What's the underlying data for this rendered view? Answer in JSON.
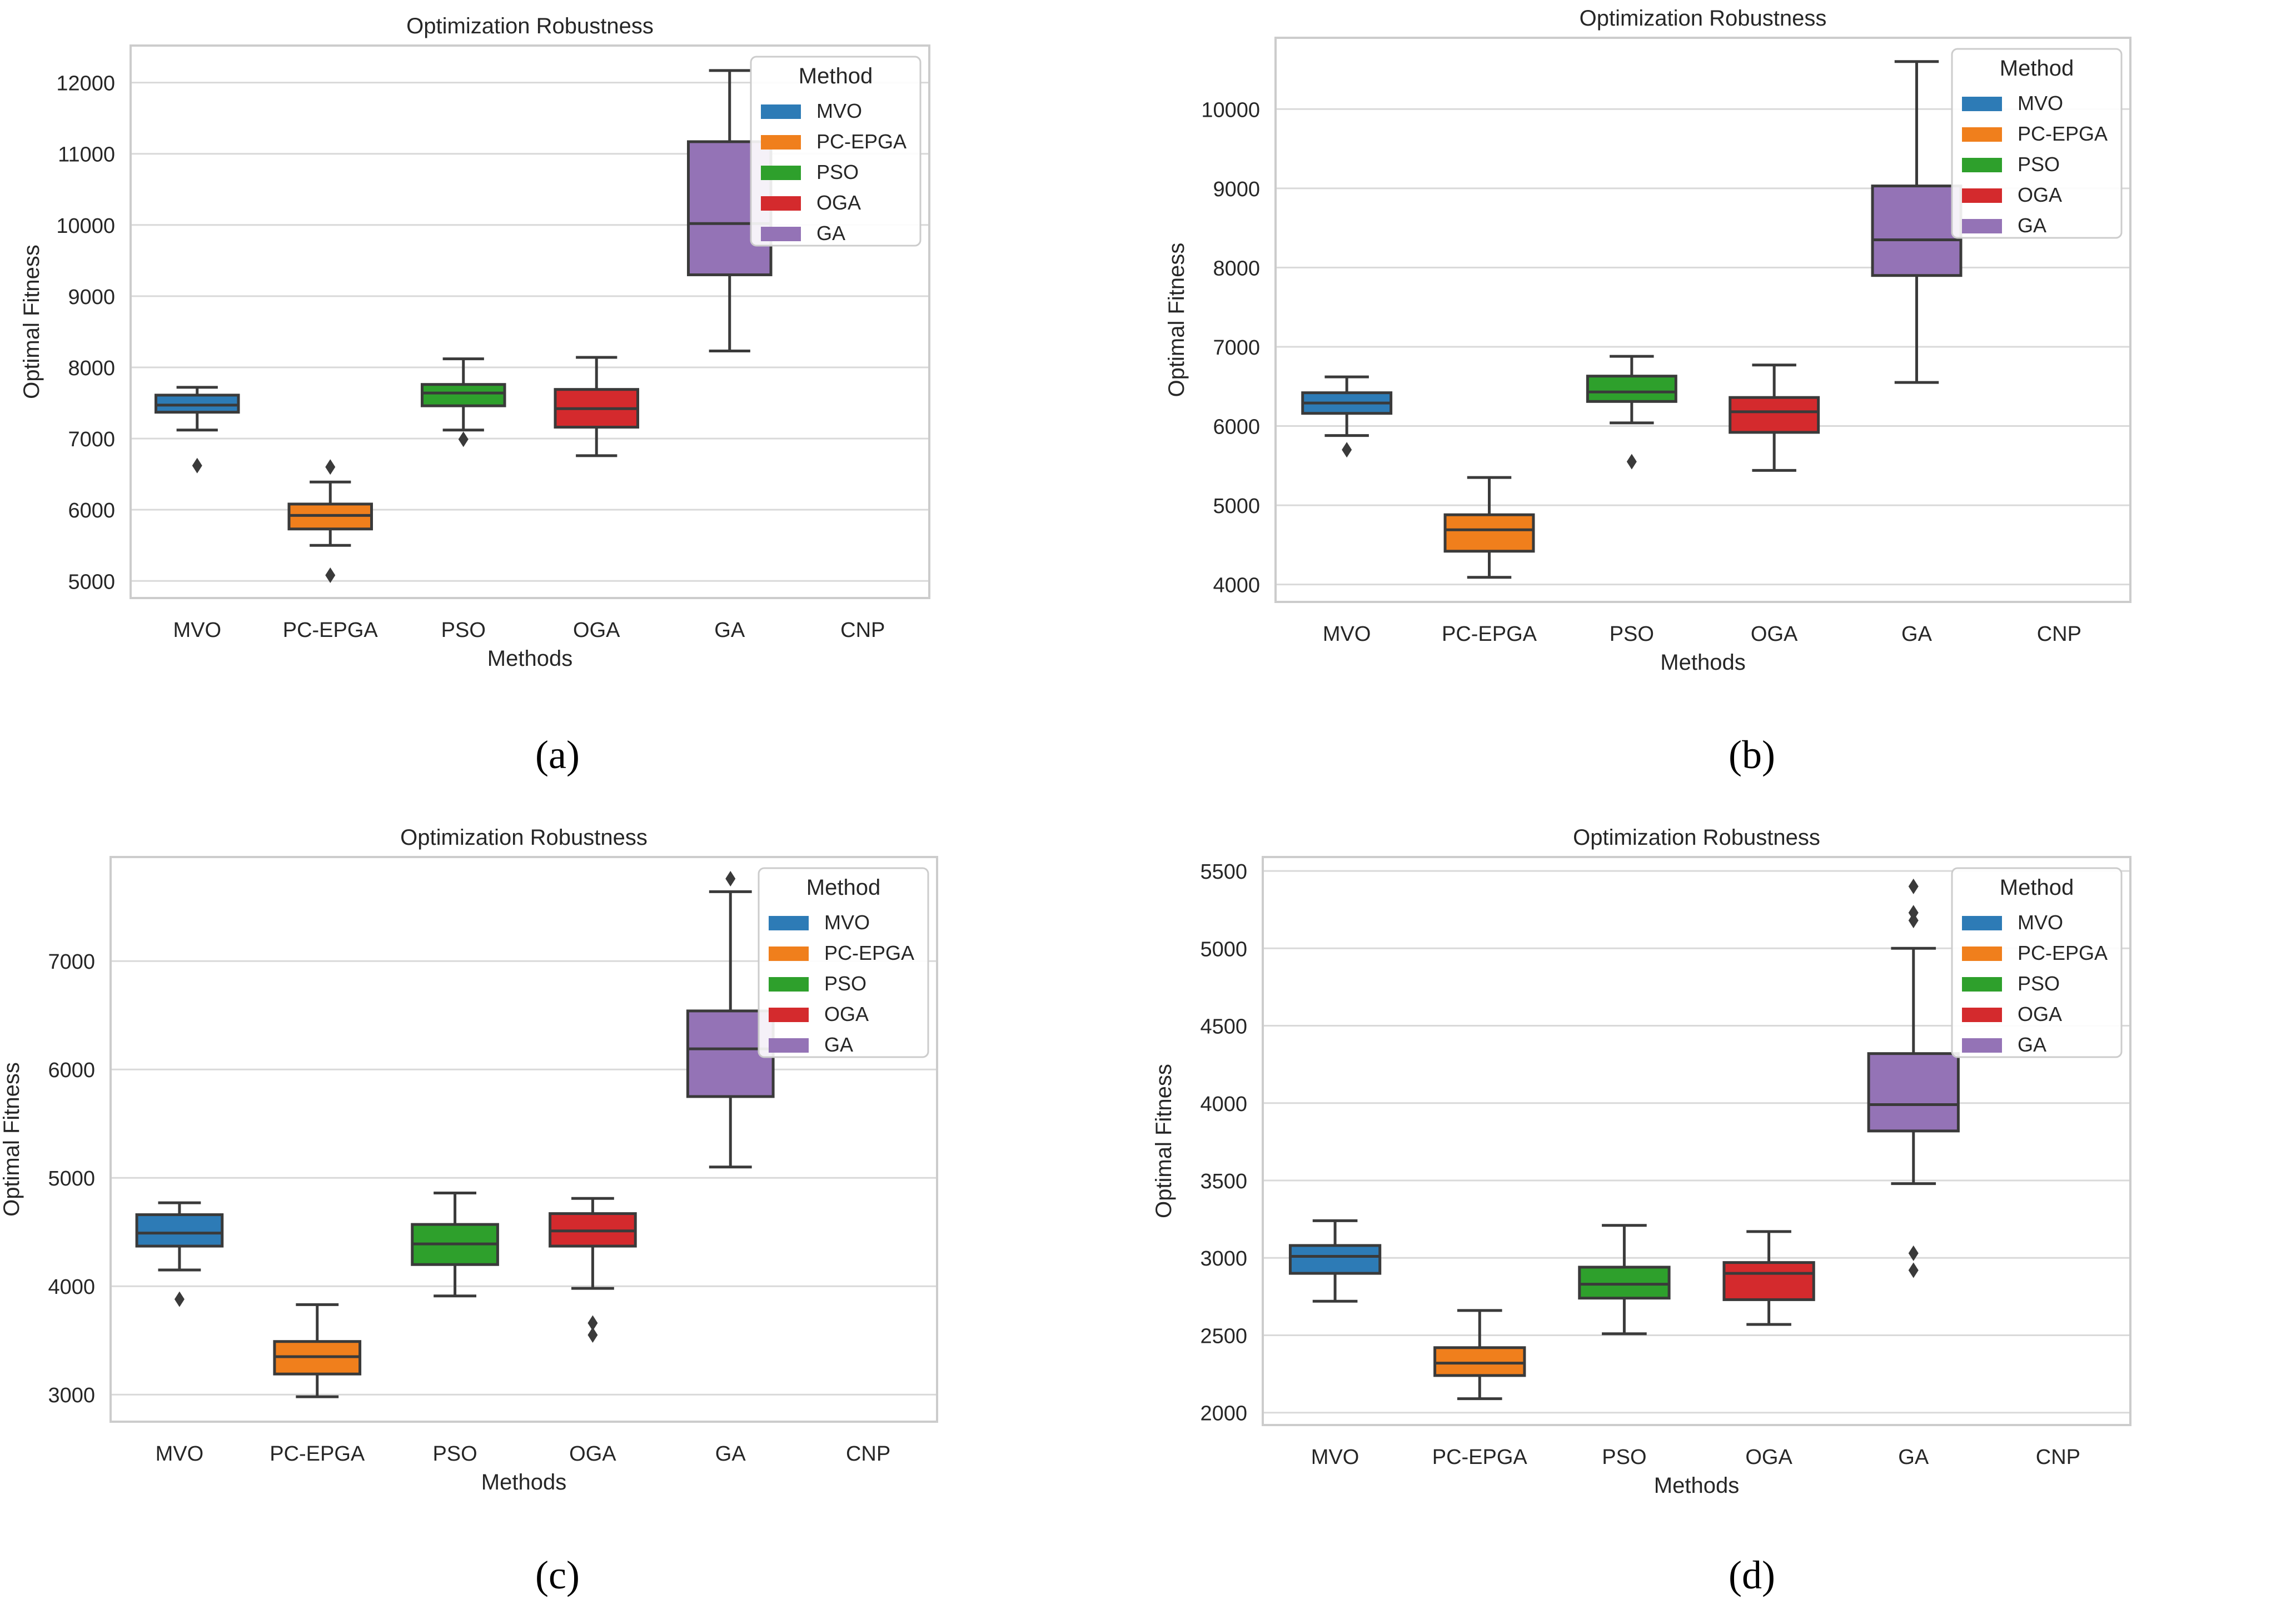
{
  "figure": {
    "captions": [
      "(a)",
      "(b)",
      "(c)",
      "(d)"
    ]
  },
  "colors": {
    "MVO": "#2d7bb6",
    "PC-EPGA": "#f07f1c",
    "PSO": "#2ea02c",
    "OGA": "#d42a2d",
    "GA": "#9473b6",
    "line": "#3a3a3a",
    "grid": "#d9d9d9",
    "frame": "#cccccc",
    "text": "#262626"
  },
  "chart_data": [
    {
      "type": "box",
      "title": "Optimization Robustness",
      "xlabel": "Methods",
      "ylabel": "Optimal Fitness",
      "categories": [
        "MVO",
        "PC-EPGA",
        "PSO",
        "OGA",
        "GA",
        "CNP"
      ],
      "ylim": [
        4760,
        12520
      ],
      "yticks": [
        5000,
        6000,
        7000,
        8000,
        9000,
        10000,
        11000,
        12000
      ],
      "legend": {
        "title": "Method",
        "entries": [
          "MVO",
          "PC-EPGA",
          "PSO",
          "OGA",
          "GA"
        ],
        "position": "top-right"
      },
      "boxes": [
        {
          "name": "MVO",
          "whislo": 7120,
          "q1": 7370,
          "med": 7470,
          "q3": 7610,
          "whishi": 7720,
          "fliers": [
            6620
          ]
        },
        {
          "name": "PC-EPGA",
          "whislo": 5500,
          "q1": 5730,
          "med": 5920,
          "q3": 6080,
          "whishi": 6390,
          "fliers": [
            6600,
            5080
          ]
        },
        {
          "name": "PSO",
          "whislo": 7120,
          "q1": 7460,
          "med": 7640,
          "q3": 7760,
          "whishi": 8120,
          "fliers": [
            6990
          ]
        },
        {
          "name": "OGA",
          "whislo": 6760,
          "q1": 7160,
          "med": 7420,
          "q3": 7690,
          "whishi": 8140,
          "fliers": []
        },
        {
          "name": "GA",
          "whislo": 8230,
          "q1": 9300,
          "med": 10020,
          "q3": 11170,
          "whishi": 12170,
          "fliers": []
        },
        {
          "name": "CNP",
          "empty": true
        }
      ]
    },
    {
      "type": "box",
      "title": "Optimization Robustness",
      "xlabel": "Methods",
      "ylabel": "Optimal Fitness",
      "categories": [
        "MVO",
        "PC-EPGA",
        "PSO",
        "OGA",
        "GA",
        "CNP"
      ],
      "ylim": [
        3780,
        10900
      ],
      "yticks": [
        4000,
        5000,
        6000,
        7000,
        8000,
        9000,
        10000
      ],
      "legend": {
        "title": "Method",
        "entries": [
          "MVO",
          "PC-EPGA",
          "PSO",
          "OGA",
          "GA"
        ],
        "position": "top-right"
      },
      "boxes": [
        {
          "name": "MVO",
          "whislo": 5880,
          "q1": 6160,
          "med": 6290,
          "q3": 6420,
          "whishi": 6620,
          "fliers": [
            5700
          ]
        },
        {
          "name": "PC-EPGA",
          "whislo": 4090,
          "q1": 4420,
          "med": 4690,
          "q3": 4880,
          "whishi": 5350,
          "fliers": []
        },
        {
          "name": "PSO",
          "whislo": 6040,
          "q1": 6310,
          "med": 6430,
          "q3": 6630,
          "whishi": 6880,
          "fliers": [
            5550
          ]
        },
        {
          "name": "OGA",
          "whislo": 5440,
          "q1": 5920,
          "med": 6180,
          "q3": 6360,
          "whishi": 6770,
          "fliers": []
        },
        {
          "name": "GA",
          "whislo": 6550,
          "q1": 7900,
          "med": 8350,
          "q3": 9030,
          "whishi": 10600,
          "fliers": []
        },
        {
          "name": "CNP",
          "empty": true
        }
      ]
    },
    {
      "type": "box",
      "title": "Optimization Robustness",
      "xlabel": "Methods",
      "ylabel": "Optimal Fitness",
      "categories": [
        "MVO",
        "PC-EPGA",
        "PSO",
        "OGA",
        "GA",
        "CNP"
      ],
      "ylim": [
        2750,
        7960
      ],
      "yticks": [
        3000,
        4000,
        5000,
        6000,
        7000
      ],
      "legend": {
        "title": "Method",
        "entries": [
          "MVO",
          "PC-EPGA",
          "PSO",
          "OGA",
          "GA"
        ],
        "position": "top-right"
      },
      "boxes": [
        {
          "name": "MVO",
          "whislo": 4150,
          "q1": 4370,
          "med": 4490,
          "q3": 4660,
          "whishi": 4770,
          "fliers": [
            3880
          ]
        },
        {
          "name": "PC-EPGA",
          "whislo": 2980,
          "q1": 3190,
          "med": 3350,
          "q3": 3490,
          "whishi": 3830,
          "fliers": []
        },
        {
          "name": "PSO",
          "whislo": 3910,
          "q1": 4200,
          "med": 4390,
          "q3": 4570,
          "whishi": 4860,
          "fliers": []
        },
        {
          "name": "OGA",
          "whislo": 3980,
          "q1": 4370,
          "med": 4510,
          "q3": 4670,
          "whishi": 4810,
          "fliers": [
            3660,
            3550
          ]
        },
        {
          "name": "GA",
          "whislo": 5100,
          "q1": 5750,
          "med": 6190,
          "q3": 6540,
          "whishi": 7640,
          "fliers": [
            7760
          ]
        },
        {
          "name": "CNP",
          "empty": true
        }
      ]
    },
    {
      "type": "box",
      "title": "Optimization Robustness",
      "xlabel": "Methods",
      "ylabel": "Optimal Fitness",
      "categories": [
        "MVO",
        "PC-EPGA",
        "PSO",
        "OGA",
        "GA",
        "CNP"
      ],
      "ylim": [
        1920,
        5590
      ],
      "yticks": [
        2000,
        2500,
        3000,
        3500,
        4000,
        4500,
        5000,
        5500
      ],
      "legend": {
        "title": "Method",
        "entries": [
          "MVO",
          "PC-EPGA",
          "PSO",
          "OGA",
          "GA"
        ],
        "position": "top-right"
      },
      "boxes": [
        {
          "name": "MVO",
          "whislo": 2720,
          "q1": 2900,
          "med": 3010,
          "q3": 3080,
          "whishi": 3240,
          "fliers": []
        },
        {
          "name": "PC-EPGA",
          "whislo": 2090,
          "q1": 2240,
          "med": 2320,
          "q3": 2420,
          "whishi": 2660,
          "fliers": []
        },
        {
          "name": "PSO",
          "whislo": 2510,
          "q1": 2740,
          "med": 2830,
          "q3": 2940,
          "whishi": 3210,
          "fliers": []
        },
        {
          "name": "OGA",
          "whislo": 2570,
          "q1": 2730,
          "med": 2900,
          "q3": 2970,
          "whishi": 3170,
          "fliers": []
        },
        {
          "name": "GA",
          "whislo": 3480,
          "q1": 3820,
          "med": 3990,
          "q3": 4320,
          "whishi": 5000,
          "fliers": [
            5400,
            5230,
            5180,
            3030,
            2920
          ]
        },
        {
          "name": "CNP",
          "empty": true
        }
      ]
    }
  ]
}
